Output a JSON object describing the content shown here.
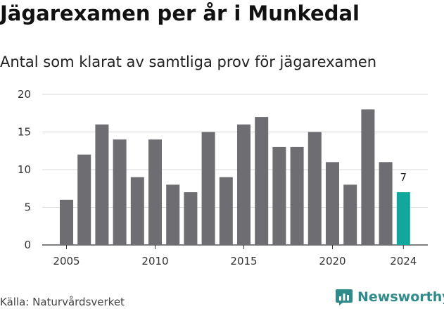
{
  "title": "Jägarexamen per år i Munkedal",
  "subtitle": "Antal som klarat av samtliga prov för jägarexamen",
  "source": "Källa: Naturvårdsverket",
  "brand": "Newsworthy",
  "colors": {
    "bar": "#6e6d72",
    "highlight": "#12a79d",
    "grid": "#d8d8d8",
    "brand": "#2f8a8c"
  },
  "chart_data": {
    "type": "bar",
    "x": [
      2005,
      2006,
      2007,
      2008,
      2009,
      2010,
      2011,
      2012,
      2013,
      2014,
      2015,
      2016,
      2017,
      2018,
      2019,
      2020,
      2021,
      2022,
      2023,
      2024
    ],
    "values": [
      6,
      12,
      16,
      14,
      9,
      14,
      8,
      7,
      15,
      9,
      16,
      17,
      13,
      13,
      15,
      11,
      8,
      18,
      11,
      7
    ],
    "xticks": [
      "2005",
      "2010",
      "2015",
      "2020",
      "2024"
    ],
    "yticks": [
      "0",
      "5",
      "10",
      "15",
      "20"
    ],
    "ylim": [
      0,
      20
    ],
    "grid": true,
    "highlight": {
      "x": 2024,
      "label": "7"
    }
  }
}
